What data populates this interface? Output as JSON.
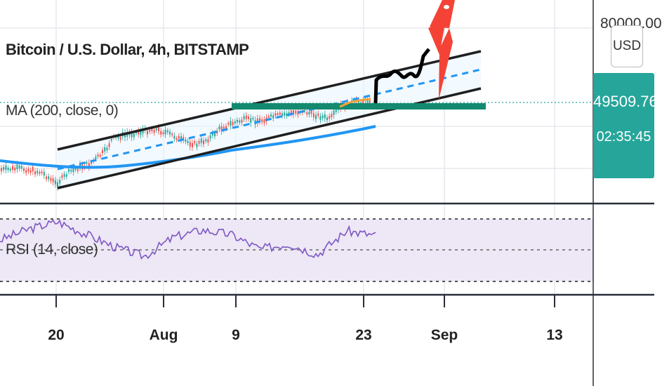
{
  "chart_title": "Bitcoin / U.S. Dollar, 4h, BITSTAMP",
  "ma_label": "MA (200, close, 0)",
  "rsi_label": "RSI (14, close)",
  "currency": "USD",
  "price_scale": {
    "top_tick": "80000.00",
    "last_price": "49509.76",
    "countdown": "02:35:45"
  },
  "x_axis": [
    "20",
    "Aug",
    "9",
    "23",
    "Sep",
    "13"
  ],
  "colors": {
    "price_up": "#26a69a",
    "price_down": "#ef5350",
    "ma_line": "#2196f3",
    "rsi_line": "#7e57c2",
    "rsi_band": "#ede7f6",
    "channel": "#1f1f1f",
    "support": "#138a6f",
    "projection": "#000000",
    "rocket": "#f44336",
    "badge": "#26a69a"
  },
  "chart_data": {
    "type": "line",
    "title": "Bitcoin / U.S. Dollar, 4h, BITSTAMP",
    "x_ticks": [
      "20",
      "Aug",
      "9",
      "23",
      "Sep",
      "13"
    ],
    "last_price": 49509.76,
    "series": [
      {
        "name": "MA (200, close, 0)",
        "values": [
          29500,
          31500,
          34500,
          38000,
          41500,
          44000
        ]
      },
      {
        "name": "RSI (14, close)",
        "values": [
          60,
          72,
          80,
          66,
          52,
          42,
          63,
          71,
          66,
          50,
          56,
          44,
          70,
          65
        ]
      }
    ]
  }
}
